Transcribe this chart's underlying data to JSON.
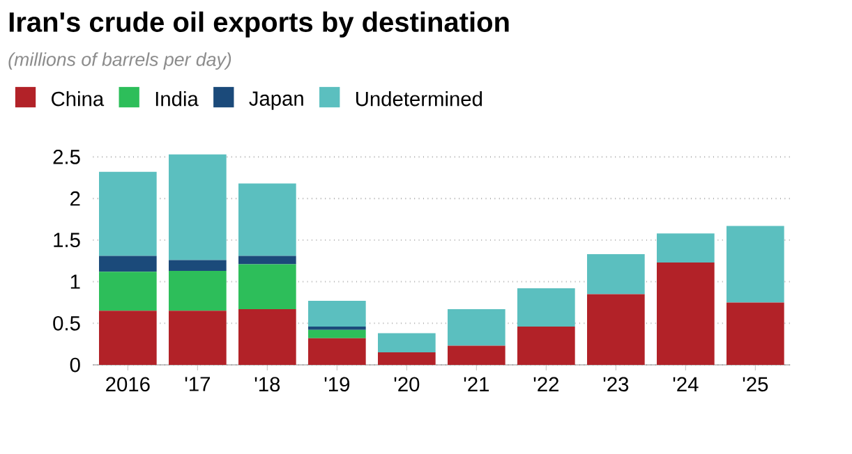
{
  "chart_data": {
    "type": "bar",
    "title": "Iran's crude oil exports by destination",
    "subtitle": "(millions of barrels per day)",
    "categories": [
      "2016",
      "'17",
      "'18",
      "'19",
      "'20",
      "'21",
      "'22",
      "'23",
      "'24",
      "'25"
    ],
    "stacked": true,
    "series": [
      {
        "name": "China",
        "color": "#b22228",
        "values": [
          0.65,
          0.65,
          0.67,
          0.32,
          0.15,
          0.23,
          0.46,
          0.85,
          1.23,
          0.75
        ]
      },
      {
        "name": "India",
        "color": "#2dbe5a",
        "values": [
          0.47,
          0.48,
          0.54,
          0.1,
          0,
          0,
          0,
          0,
          0,
          0
        ]
      },
      {
        "name": "Japan",
        "color": "#1b4a7a",
        "values": [
          0.19,
          0.13,
          0.1,
          0.04,
          0,
          0,
          0,
          0,
          0,
          0
        ]
      },
      {
        "name": "Undetermined",
        "color": "#5bbfbf",
        "values": [
          1.01,
          1.27,
          0.87,
          0.31,
          0.23,
          0.44,
          0.46,
          0.48,
          0.35,
          0.92
        ]
      }
    ],
    "ylim": [
      0,
      2.55
    ],
    "yticks": [
      0,
      0.5,
      1,
      1.5,
      2,
      2.5
    ],
    "grid": "y",
    "legend": "top left"
  }
}
